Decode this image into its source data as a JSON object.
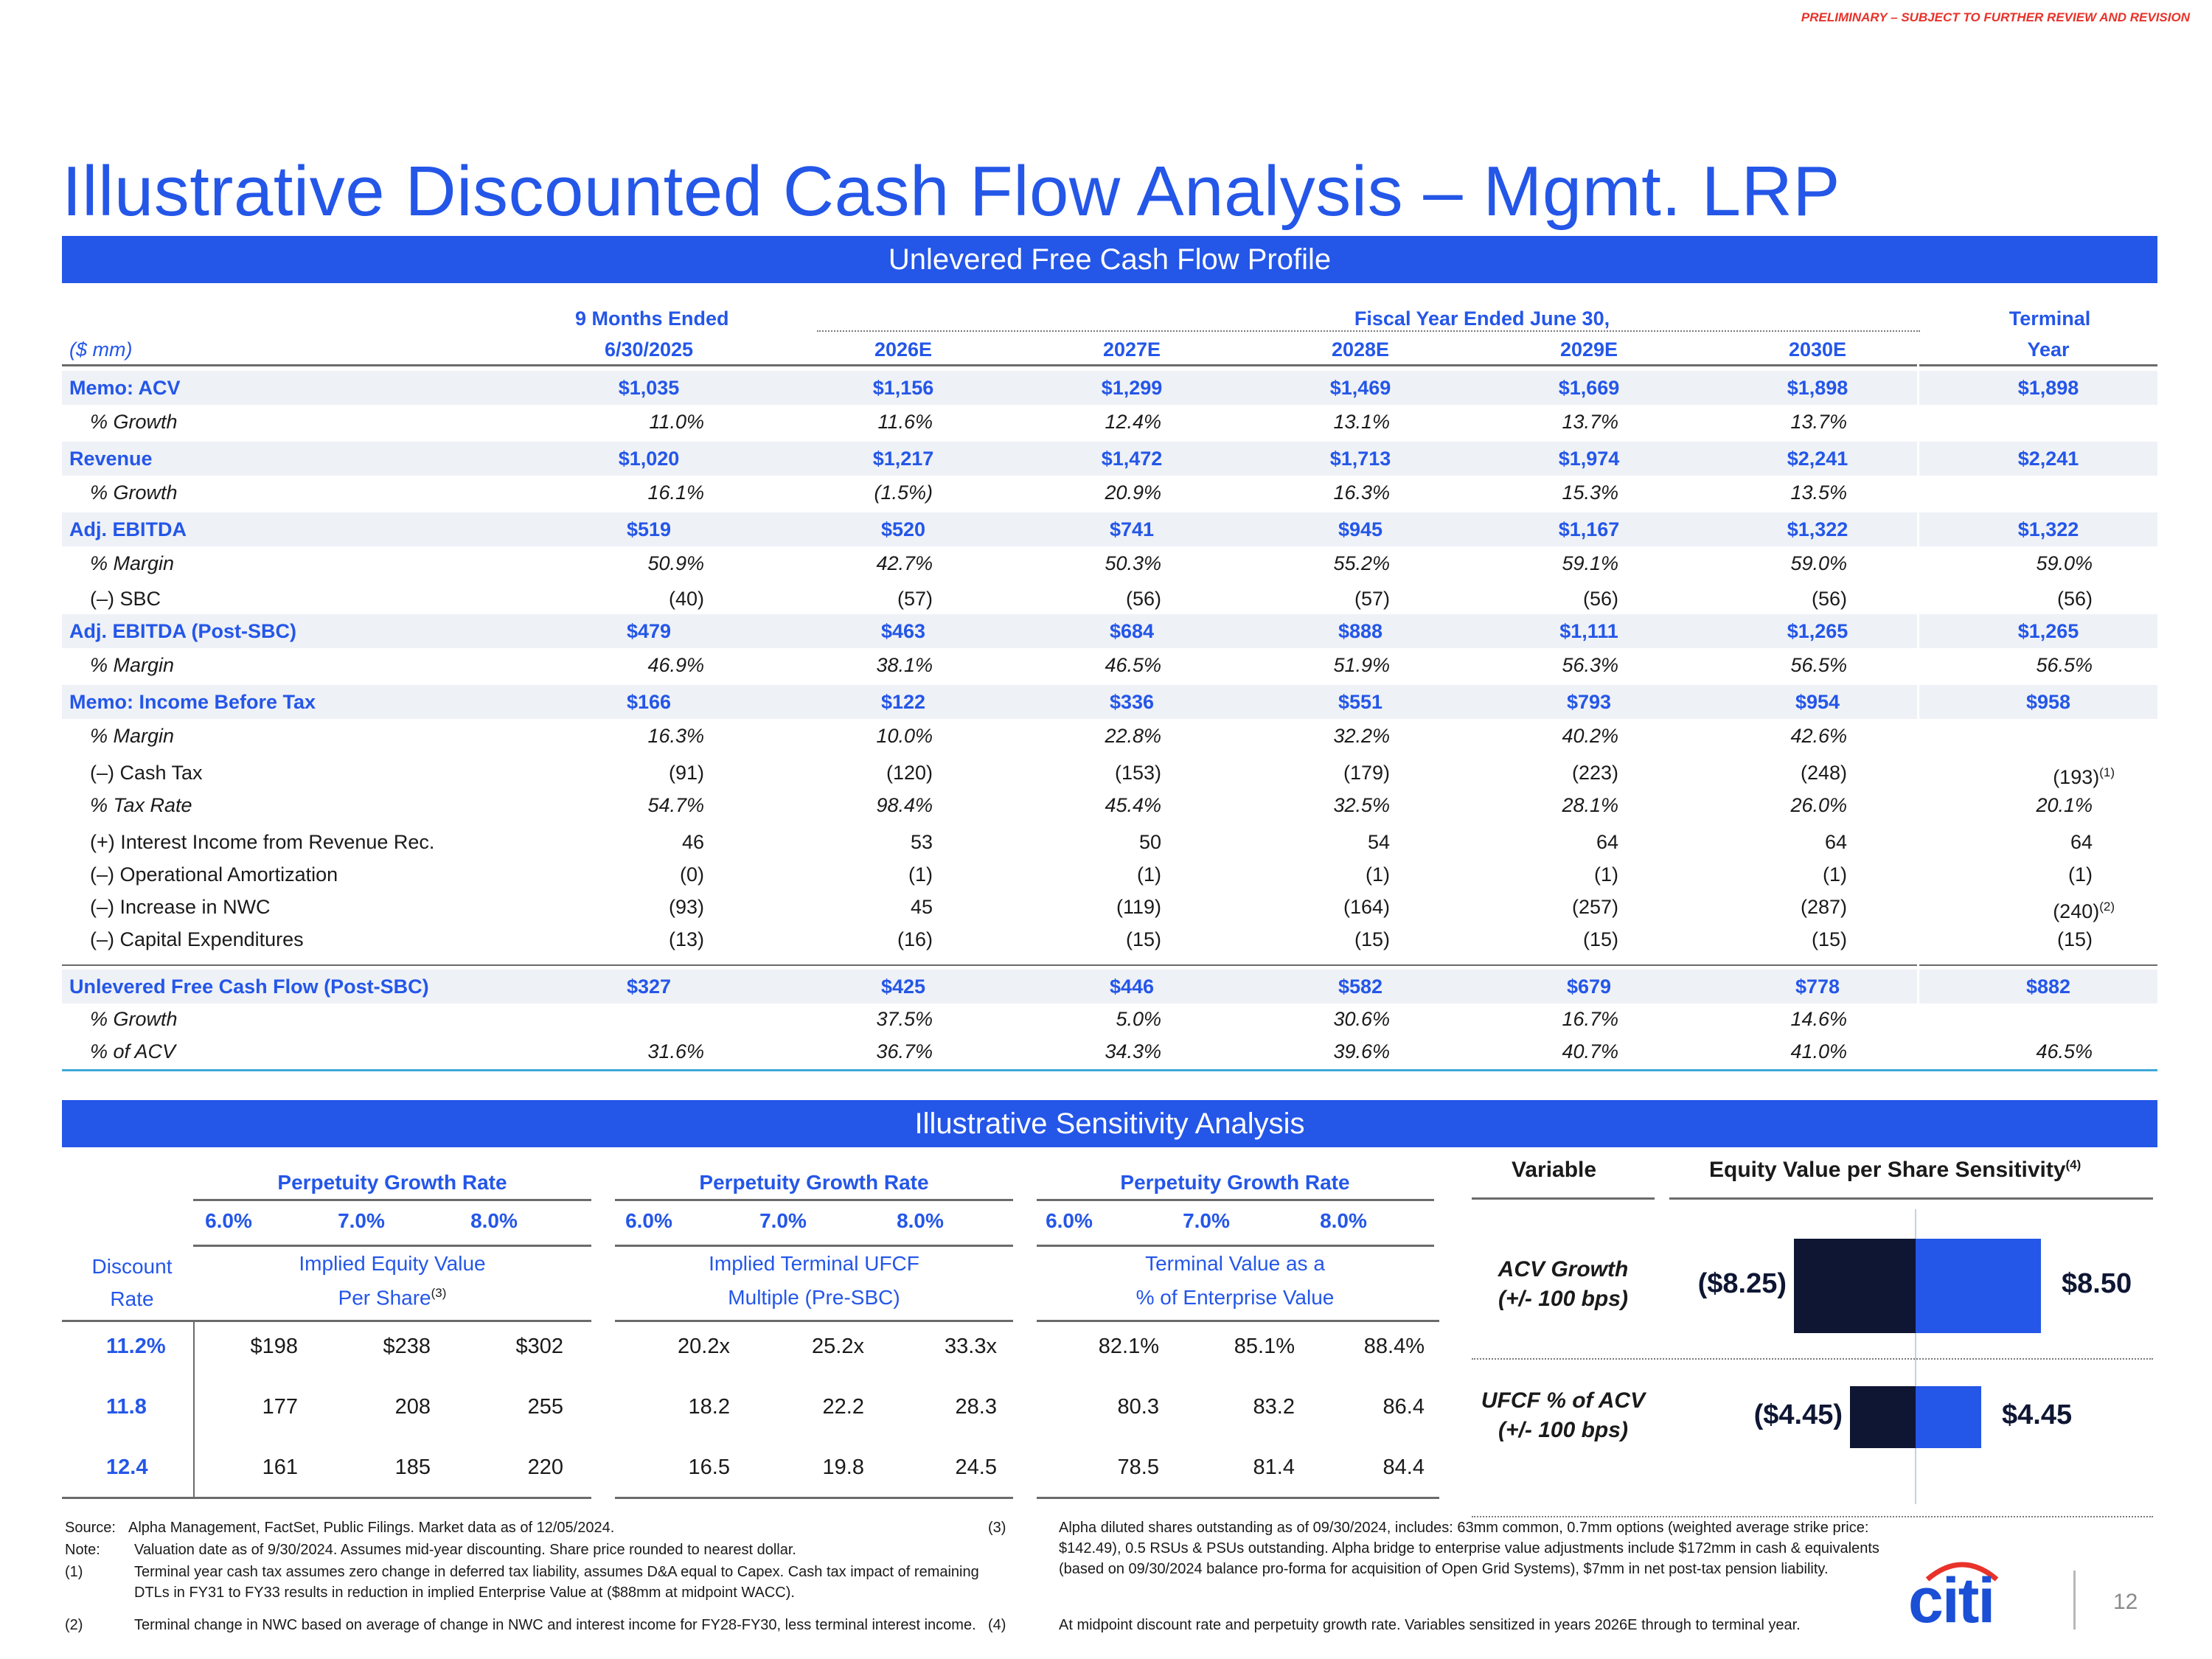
{
  "header": {
    "prelim": "PRELIMINARY – SUBJECT TO FURTHER REVIEW AND REVISION",
    "title": "Illustrative Discounted Cash Flow Analysis – Mgmt. LRP"
  },
  "ufcf": {
    "banner": "Unlevered Free Cash Flow Profile",
    "units": "($ mm)",
    "col_group_1": "9 Months Ended",
    "col_group_2": "Fiscal Year Ended June 30,",
    "col_group_3": "Terminal",
    "columns": [
      "6/30/2025",
      "2026E",
      "2027E",
      "2028E",
      "2029E",
      "2030E",
      "Year"
    ],
    "rows": [
      {
        "label": "Memo: ACV",
        "values": [
          "$1,035",
          "$1,156",
          "$1,299",
          "$1,469",
          "$1,669",
          "$1,898",
          "$1,898"
        ]
      },
      {
        "label": "% Growth",
        "values": [
          "11.0%",
          "11.6%",
          "12.4%",
          "13.1%",
          "13.7%",
          "13.7%",
          ""
        ]
      },
      {
        "label": "Revenue",
        "values": [
          "$1,020",
          "$1,217",
          "$1,472",
          "$1,713",
          "$1,974",
          "$2,241",
          "$2,241"
        ]
      },
      {
        "label": "% Growth",
        "values": [
          "16.1%",
          "(1.5%)",
          "20.9%",
          "16.3%",
          "15.3%",
          "13.5%",
          ""
        ]
      },
      {
        "label": "Adj. EBITDA",
        "values": [
          "$519",
          "$520",
          "$741",
          "$945",
          "$1,167",
          "$1,322",
          "$1,322"
        ]
      },
      {
        "label": "% Margin",
        "values": [
          "50.9%",
          "42.7%",
          "50.3%",
          "55.2%",
          "59.1%",
          "59.0%",
          "59.0%"
        ]
      },
      {
        "label": "(–) SBC",
        "values": [
          "(40)",
          "(57)",
          "(56)",
          "(57)",
          "(56)",
          "(56)",
          "(56)"
        ]
      },
      {
        "label": "Adj. EBITDA (Post-SBC)",
        "values": [
          "$479",
          "$463",
          "$684",
          "$888",
          "$1,111",
          "$1,265",
          "$1,265"
        ]
      },
      {
        "label": "% Margin",
        "values": [
          "46.9%",
          "38.1%",
          "46.5%",
          "51.9%",
          "56.3%",
          "56.5%",
          "56.5%"
        ]
      },
      {
        "label": "Memo: Income Before Tax",
        "values": [
          "$166",
          "$122",
          "$336",
          "$551",
          "$793",
          "$954",
          "$958"
        ]
      },
      {
        "label": "% Margin",
        "values": [
          "16.3%",
          "10.0%",
          "22.8%",
          "32.2%",
          "40.2%",
          "42.6%",
          ""
        ]
      },
      {
        "label": "(–) Cash Tax",
        "values": [
          "(91)",
          "(120)",
          "(153)",
          "(179)",
          "(223)",
          "(248)",
          "(193)"
        ],
        "terminal_note": "(1)"
      },
      {
        "label": "% Tax Rate",
        "values": [
          "54.7%",
          "98.4%",
          "45.4%",
          "32.5%",
          "28.1%",
          "26.0%",
          "20.1%"
        ]
      },
      {
        "label": "(+) Interest Income from Revenue Rec.",
        "values": [
          "46",
          "53",
          "50",
          "54",
          "64",
          "64",
          "64"
        ]
      },
      {
        "label": "(–) Operational Amortization",
        "values": [
          "(0)",
          "(1)",
          "(1)",
          "(1)",
          "(1)",
          "(1)",
          "(1)"
        ]
      },
      {
        "label": "(–) Increase in NWC",
        "values": [
          "(93)",
          "45",
          "(119)",
          "(164)",
          "(257)",
          "(287)",
          "(240)"
        ],
        "terminal_note": "(2)"
      },
      {
        "label": "(–) Capital Expenditures",
        "values": [
          "(13)",
          "(16)",
          "(15)",
          "(15)",
          "(15)",
          "(15)",
          "(15)"
        ]
      },
      {
        "label": "Unlevered Free Cash Flow (Post-SBC)",
        "values": [
          "$327",
          "$425",
          "$446",
          "$582",
          "$679",
          "$778",
          "$882"
        ]
      },
      {
        "label": "% Growth",
        "values": [
          "",
          "37.5%",
          "5.0%",
          "30.6%",
          "16.7%",
          "14.6%",
          ""
        ]
      },
      {
        "label": "% of ACV",
        "values": [
          "31.6%",
          "36.7%",
          "34.3%",
          "39.6%",
          "40.7%",
          "41.0%",
          "46.5%"
        ]
      }
    ]
  },
  "sensitivity": {
    "banner": "Illustrative Sensitivity Analysis",
    "pgr_label": "Perpetuity Growth Rate",
    "pgr_values": [
      "6.0%",
      "7.0%",
      "8.0%"
    ],
    "discount_label_1": "Discount",
    "discount_label_2": "Rate",
    "rates": [
      "11.2%",
      "11.8",
      "12.4"
    ],
    "blocks": [
      {
        "title_1": "Implied Equity Value",
        "title_2": "Per Share",
        "note": "(3)",
        "rows": [
          [
            "$198",
            "$238",
            "$302"
          ],
          [
            "177",
            "208",
            "255"
          ],
          [
            "161",
            "185",
            "220"
          ]
        ]
      },
      {
        "title_1": "Implied Terminal UFCF",
        "title_2": "Multiple (Pre-SBC)",
        "note": "",
        "rows": [
          [
            "20.2x",
            "25.2x",
            "33.3x"
          ],
          [
            "18.2",
            "22.2",
            "28.3"
          ],
          [
            "16.5",
            "19.8",
            "24.5"
          ]
        ]
      },
      {
        "title_1": "Terminal Value as a",
        "title_2": "% of Enterprise Value",
        "note": "",
        "rows": [
          [
            "82.1%",
            "85.1%",
            "88.4%"
          ],
          [
            "80.3",
            "83.2",
            "86.4"
          ],
          [
            "78.5",
            "81.4",
            "84.4"
          ]
        ]
      }
    ]
  },
  "tornado": {
    "variable_header": "Variable",
    "chart_header": "Equity Value per Share Sensitivity",
    "chart_note": "(4)",
    "colors": {
      "negative": "#0e1633",
      "positive": "#2456e8"
    },
    "rows": [
      {
        "label_1": "ACV Growth",
        "label_2": "(+/- 100 bps)",
        "low_label": "($8.25)",
        "high_label": "$8.50",
        "low": -8.25,
        "high": 8.5
      },
      {
        "label_1": "UFCF % of ACV",
        "label_2": "(+/- 100 bps)",
        "low_label": "($4.45)",
        "high_label": "$4.45",
        "low": -4.45,
        "high": 4.45
      }
    ]
  },
  "footnotes": {
    "source_tag": "Source:",
    "source": "Alpha Management, FactSet, Public Filings. Market data as of 12/05/2024.",
    "note_tag": "Note:",
    "note": "Valuation date as of 9/30/2024. Assumes mid-year discounting. Share price rounded to nearest dollar.",
    "n1_tag": "(1)",
    "n1": "Terminal year cash tax assumes zero change in deferred tax liability, assumes D&A equal to Capex. Cash tax impact of remaining DTLs in FY31 to FY33 results in reduction in implied Enterprise Value at ($88mm at midpoint WACC).",
    "n2_tag": "(2)",
    "n2": "Terminal change in NWC based on average of change in NWC and interest income for FY28-FY30, less terminal interest income.",
    "n3_tag": "(3)",
    "n3": "Alpha diluted shares outstanding as of 09/30/2024, includes: 63mm common, 0.7mm options (weighted average strike price: $142.49), 0.5 RSUs & PSUs outstanding. Alpha bridge to enterprise value adjustments include $172mm in cash & equivalents (based on 09/30/2024 balance pro-forma for acquisition of Open Grid Systems), $7mm in net post-tax pension liability.",
    "n4_tag": "(4)",
    "n4": "At midpoint discount rate and perpetuity growth rate. Variables sensitized in years 2026E through to terminal year."
  },
  "brand": {
    "logo": "citi",
    "page": "12"
  }
}
